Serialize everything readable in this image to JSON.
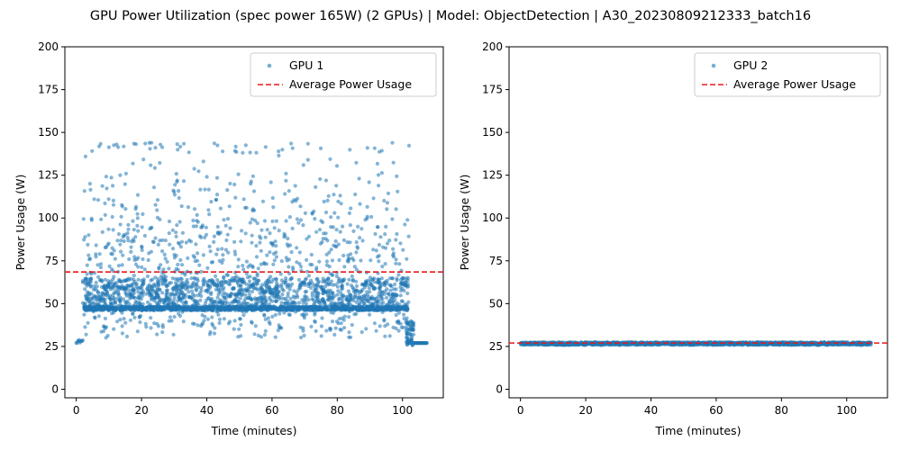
{
  "title": "GPU Power Utilization (spec power 165W) (2 GPUs) | Model: ObjectDetection | A30_20230809212333_batch16",
  "colors": {
    "points": "#1f77b4",
    "average": "#e41a1c"
  },
  "chart_data": [
    {
      "type": "scatter",
      "xlabel": "Time (minutes)",
      "ylabel": "Power Usage (W)",
      "xlim": [
        -3.5,
        112.5
      ],
      "ylim": [
        -5,
        200
      ],
      "x_ticks": [
        0,
        20,
        40,
        60,
        80,
        100
      ],
      "y_ticks": [
        0,
        25,
        50,
        75,
        100,
        125,
        150,
        175,
        200
      ],
      "grid": false,
      "legend_position": "top-right",
      "series": [
        {
          "name": "GPU 1",
          "marker": "point",
          "profile": {
            "start_time": 0,
            "idle_start": [
              0,
              2,
              27,
              29
            ],
            "active_range": [
              2,
              102
            ],
            "active_baseline": 47,
            "active_range_power": [
              30,
              144
            ],
            "taper_range": [
              101,
              103.5
            ],
            "taper_power": [
              25,
              40
            ],
            "idle_end": [
              103.5,
              107.5,
              27,
              27
            ]
          }
        },
        {
          "name": "Average Power Usage",
          "line_style": "dashed",
          "value": 68.5
        }
      ]
    },
    {
      "type": "scatter",
      "xlabel": "Time (minutes)",
      "ylabel": "Power Usage (W)",
      "xlim": [
        -3.5,
        112.5
      ],
      "ylim": [
        -5,
        200
      ],
      "x_ticks": [
        0,
        20,
        40,
        60,
        80,
        100
      ],
      "y_ticks": [
        0,
        25,
        50,
        75,
        100,
        125,
        150,
        175,
        200
      ],
      "grid": false,
      "legend_position": "top-right",
      "series": [
        {
          "name": "GPU 2",
          "marker": "point",
          "profile": {
            "time_range": [
              0,
              107.5
            ],
            "power_range": [
              25.8,
              27.5
            ]
          }
        },
        {
          "name": "Average Power Usage",
          "line_style": "dashed",
          "value": 27
        }
      ]
    }
  ]
}
